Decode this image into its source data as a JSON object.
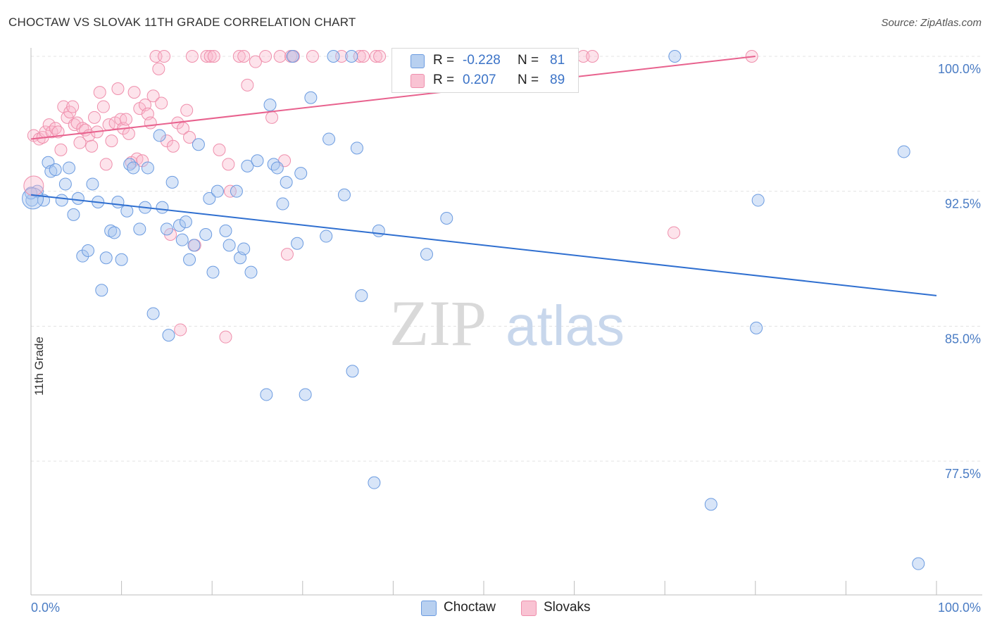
{
  "header": {
    "title": "CHOCTAW VS SLOVAK 11TH GRADE CORRELATION CHART",
    "source": "Source: ZipAtlas.com"
  },
  "watermark": {
    "zip": "ZIP",
    "atlas": "atlas"
  },
  "legend": {
    "r_label": "R =",
    "n_label": "N =",
    "items": [
      {
        "name": "Choctaw",
        "r": "-0.228",
        "n": "81",
        "fill": "#b8d0f0",
        "stroke": "#6b9be0"
      },
      {
        "name": "Slovaks",
        "r": "0.207",
        "n": "89",
        "fill": "#f9c3d3",
        "stroke": "#ef8fac"
      }
    ]
  },
  "chart_data": {
    "type": "scatter",
    "title": "CHOCTAW VS SLOVAK 11TH GRADE CORRELATION CHART",
    "xlabel": "",
    "ylabel": "11th Grade",
    "x_tick_labels": [
      "0.0%",
      "100.0%"
    ],
    "y_tick_labels": [
      "100.0%",
      "92.5%",
      "85.0%",
      "77.5%"
    ],
    "y_ticks": [
      100.0,
      92.5,
      85.0,
      77.5
    ],
    "xlim": [
      0,
      100
    ],
    "ylim": [
      70.8,
      100.6
    ],
    "grid": true,
    "colors": {
      "choctaw": "#6b9be0",
      "slovaks": "#ef8fac",
      "choctaw_line": "#2f6fd0",
      "slovaks_line": "#e8628e",
      "axis_text": "#4a7cc4"
    },
    "series": [
      {
        "name": "Choctaw",
        "trend": {
          "x": [
            0,
            100
          ],
          "y": [
            92.3,
            86.7
          ]
        },
        "points": [
          [
            0.1,
            92.0
          ],
          [
            0.7,
            92.5
          ],
          [
            1.4,
            92.0
          ],
          [
            1.9,
            94.1
          ],
          [
            2.2,
            93.6
          ],
          [
            2.7,
            93.7
          ],
          [
            3.4,
            92.0
          ],
          [
            3.8,
            92.9
          ],
          [
            4.2,
            93.8
          ],
          [
            4.7,
            91.2
          ],
          [
            5.2,
            92.1
          ],
          [
            5.7,
            88.9
          ],
          [
            6.3,
            89.2
          ],
          [
            6.8,
            92.9
          ],
          [
            7.4,
            91.9
          ],
          [
            7.8,
            87.0
          ],
          [
            8.3,
            88.8
          ],
          [
            8.8,
            90.3
          ],
          [
            9.2,
            90.2
          ],
          [
            9.6,
            91.9
          ],
          [
            10.0,
            88.7
          ],
          [
            10.6,
            91.4
          ],
          [
            10.9,
            94.0
          ],
          [
            11.3,
            93.8
          ],
          [
            12.0,
            90.4
          ],
          [
            12.6,
            91.6
          ],
          [
            12.9,
            93.8
          ],
          [
            13.5,
            85.7
          ],
          [
            14.2,
            95.6
          ],
          [
            14.5,
            91.6
          ],
          [
            15.0,
            90.4
          ],
          [
            15.2,
            84.5
          ],
          [
            15.6,
            93.0
          ],
          [
            16.4,
            90.6
          ],
          [
            16.7,
            89.8
          ],
          [
            17.1,
            90.8
          ],
          [
            17.5,
            88.7
          ],
          [
            18.0,
            89.5
          ],
          [
            18.5,
            95.1
          ],
          [
            19.3,
            90.1
          ],
          [
            19.7,
            92.1
          ],
          [
            20.1,
            88.0
          ],
          [
            20.6,
            92.5
          ],
          [
            21.5,
            90.3
          ],
          [
            21.9,
            89.5
          ],
          [
            22.7,
            92.5
          ],
          [
            23.1,
            88.8
          ],
          [
            23.5,
            89.3
          ],
          [
            23.9,
            93.9
          ],
          [
            24.3,
            88.0
          ],
          [
            25.0,
            94.2
          ],
          [
            26.0,
            81.2
          ],
          [
            26.4,
            97.3
          ],
          [
            26.8,
            94.0
          ],
          [
            27.2,
            93.8
          ],
          [
            27.8,
            91.8
          ],
          [
            28.2,
            93.0
          ],
          [
            28.9,
            100.0
          ],
          [
            29.4,
            89.6
          ],
          [
            29.8,
            93.5
          ],
          [
            30.3,
            81.2
          ],
          [
            30.9,
            97.7
          ],
          [
            32.6,
            90.0
          ],
          [
            32.9,
            95.4
          ],
          [
            33.4,
            100.0
          ],
          [
            34.6,
            92.3
          ],
          [
            35.4,
            100.0
          ],
          [
            35.5,
            82.5
          ],
          [
            36.0,
            94.9
          ],
          [
            36.5,
            86.7
          ],
          [
            37.9,
            76.3
          ],
          [
            38.4,
            90.3
          ],
          [
            43.7,
            89.0
          ],
          [
            45.9,
            91.0
          ],
          [
            71.1,
            100.0
          ],
          [
            75.1,
            75.1
          ],
          [
            80.1,
            84.9
          ],
          [
            80.3,
            92.0
          ],
          [
            96.4,
            94.7
          ],
          [
            98.0,
            71.8
          ],
          [
            0.0,
            92.4
          ]
        ]
      },
      {
        "name": "Slovaks",
        "trend": {
          "x": [
            0,
            80
          ],
          "y": [
            95.4,
            100.0
          ]
        },
        "points": [
          [
            0.3,
            95.6
          ],
          [
            0.9,
            95.4
          ],
          [
            1.3,
            95.5
          ],
          [
            1.6,
            95.8
          ],
          [
            2.0,
            96.2
          ],
          [
            2.3,
            95.8
          ],
          [
            2.7,
            96.0
          ],
          [
            3.0,
            95.8
          ],
          [
            3.3,
            94.8
          ],
          [
            3.6,
            97.2
          ],
          [
            4.0,
            96.6
          ],
          [
            4.3,
            96.9
          ],
          [
            4.6,
            97.2
          ],
          [
            4.8,
            96.2
          ],
          [
            5.1,
            96.3
          ],
          [
            5.4,
            95.2
          ],
          [
            5.7,
            96.0
          ],
          [
            6.0,
            95.9
          ],
          [
            6.4,
            95.6
          ],
          [
            6.7,
            95.0
          ],
          [
            7.0,
            96.6
          ],
          [
            7.3,
            95.8
          ],
          [
            7.6,
            98.0
          ],
          [
            8.0,
            97.2
          ],
          [
            8.3,
            94.0
          ],
          [
            8.6,
            96.2
          ],
          [
            8.9,
            95.3
          ],
          [
            9.3,
            96.3
          ],
          [
            9.6,
            98.2
          ],
          [
            9.9,
            96.5
          ],
          [
            10.2,
            96.0
          ],
          [
            10.5,
            96.5
          ],
          [
            10.8,
            95.7
          ],
          [
            11.1,
            94.1
          ],
          [
            11.4,
            98.0
          ],
          [
            11.7,
            94.3
          ],
          [
            12.0,
            97.1
          ],
          [
            12.3,
            94.2
          ],
          [
            12.6,
            97.3
          ],
          [
            12.9,
            96.8
          ],
          [
            13.2,
            96.3
          ],
          [
            13.5,
            97.8
          ],
          [
            13.8,
            100.0
          ],
          [
            14.1,
            99.3
          ],
          [
            14.4,
            97.4
          ],
          [
            14.7,
            100.0
          ],
          [
            15.0,
            95.3
          ],
          [
            15.4,
            90.1
          ],
          [
            15.7,
            95.0
          ],
          [
            16.2,
            96.3
          ],
          [
            16.5,
            84.8
          ],
          [
            16.8,
            96.0
          ],
          [
            17.2,
            97.0
          ],
          [
            17.5,
            95.5
          ],
          [
            17.8,
            100.0
          ],
          [
            18.1,
            89.5
          ],
          [
            19.4,
            100.0
          ],
          [
            19.8,
            100.0
          ],
          [
            20.2,
            100.0
          ],
          [
            20.8,
            94.8
          ],
          [
            21.5,
            84.4
          ],
          [
            21.8,
            94.0
          ],
          [
            22.0,
            92.5
          ],
          [
            23.0,
            100.0
          ],
          [
            23.5,
            100.0
          ],
          [
            23.9,
            98.4
          ],
          [
            24.8,
            99.7
          ],
          [
            25.9,
            100.0
          ],
          [
            26.6,
            96.6
          ],
          [
            27.5,
            100.0
          ],
          [
            28.0,
            94.2
          ],
          [
            28.3,
            89.0
          ],
          [
            28.7,
            100.0
          ],
          [
            29.0,
            100.0
          ],
          [
            31.1,
            100.0
          ],
          [
            34.3,
            100.0
          ],
          [
            36.3,
            100.0
          ],
          [
            36.7,
            100.0
          ],
          [
            38.1,
            100.0
          ],
          [
            38.5,
            100.0
          ],
          [
            49.4,
            100.0
          ],
          [
            51.4,
            100.0
          ],
          [
            53.3,
            100.0
          ],
          [
            53.8,
            100.0
          ],
          [
            57.1,
            100.0
          ],
          [
            61.0,
            100.0
          ],
          [
            62.0,
            100.0
          ],
          [
            71.0,
            90.2
          ],
          [
            79.6,
            100.0
          ]
        ]
      }
    ]
  }
}
